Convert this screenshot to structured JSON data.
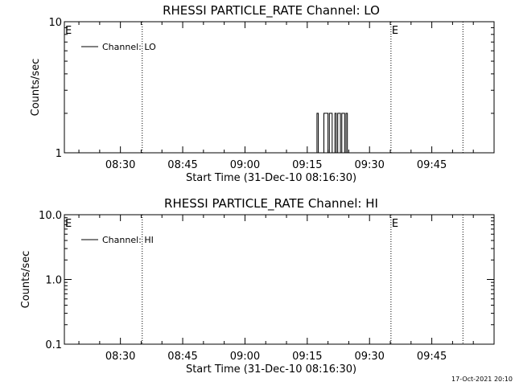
{
  "chart_data": [
    {
      "type": "line",
      "title": "RHESSI PARTICLE_RATE Channel: LO",
      "xlabel": "Start Time (31-Dec-10 08:16:30)",
      "ylabel": "Counts/sec",
      "x_ticks": [
        "08:30",
        "08:45",
        "09:00",
        "09:15",
        "09:30",
        "09:45"
      ],
      "x_range": [
        "08:16:30",
        "10:00:00"
      ],
      "y_scale": "log",
      "y_ticks": [
        "1",
        "10"
      ],
      "ylim": [
        1,
        10
      ],
      "vlines": [
        "08:35:15",
        "09:35:10",
        "09:52:30"
      ],
      "vline_marks": [
        "E",
        "E"
      ],
      "legend": {
        "entries": [
          "Channel: LO"
        ],
        "position": "top-left"
      },
      "series": [
        {
          "name": "Channel: LO",
          "x": [
            "09:17:00",
            "09:17:20",
            "09:17:40",
            "09:18:00",
            "09:18:20",
            "09:18:40",
            "09:19:00",
            "09:19:20",
            "09:19:40",
            "09:20:00",
            "09:20:20",
            "09:20:40",
            "09:21:00",
            "09:21:20",
            "09:21:40",
            "09:22:00",
            "09:22:20",
            "09:22:40",
            "09:23:00",
            "09:23:20",
            "09:23:40",
            "09:24:00",
            "09:24:20",
            "09:24:40"
          ],
          "y": [
            1,
            2,
            1,
            1,
            1,
            1,
            2,
            2,
            2,
            1,
            2,
            2,
            1,
            1,
            2,
            1,
            2,
            2,
            1,
            2,
            2,
            1,
            2,
            1
          ]
        }
      ]
    },
    {
      "type": "line",
      "title": "RHESSI PARTICLE_RATE Channel: HI",
      "xlabel": "Start Time (31-Dec-10 08:16:30)",
      "ylabel": "Counts/sec",
      "x_ticks": [
        "08:30",
        "08:45",
        "09:00",
        "09:15",
        "09:30",
        "09:45"
      ],
      "x_range": [
        "08:16:30",
        "10:00:00"
      ],
      "y_scale": "log",
      "y_ticks": [
        "0.1",
        "1.0",
        "10.0"
      ],
      "ylim": [
        0.1,
        10
      ],
      "vlines": [
        "08:35:15",
        "09:35:10",
        "09:52:30"
      ],
      "vline_marks": [
        "E",
        "E"
      ],
      "legend": {
        "entries": [
          "Channel: HI"
        ],
        "position": "top-left"
      },
      "series": [
        {
          "name": "Channel: HI",
          "x": [],
          "y": []
        }
      ]
    }
  ],
  "footer_timestamp": "17-Oct-2021 20:10"
}
